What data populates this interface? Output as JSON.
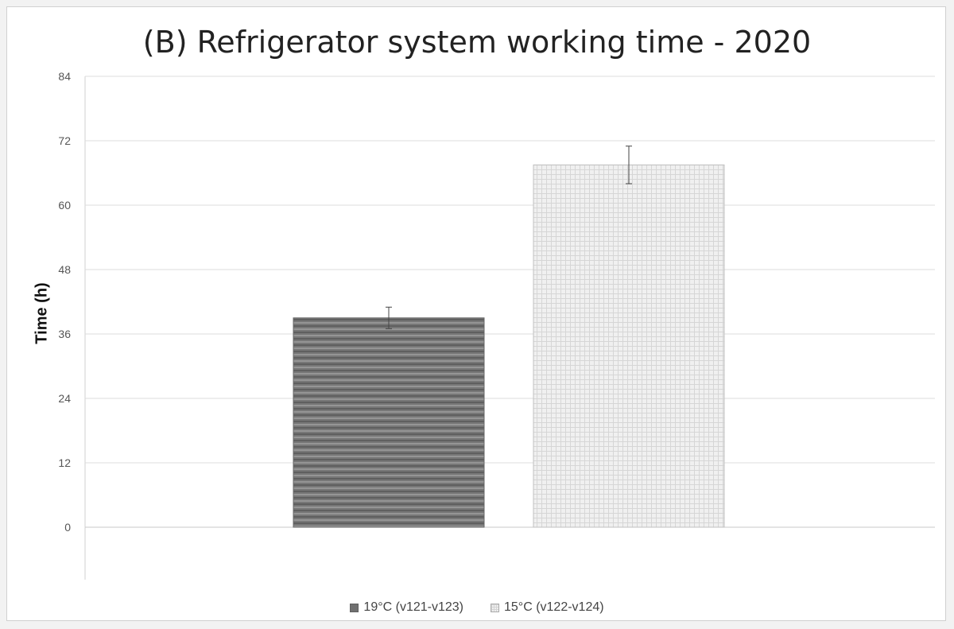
{
  "chart_data": {
    "type": "bar",
    "title": "(B) Refrigerator system working time - 2020",
    "ylabel": "Time (h)",
    "xlabel": "",
    "ylim": [
      0,
      84
    ],
    "yticks": [
      0,
      12,
      24,
      36,
      48,
      60,
      72,
      84
    ],
    "grid": true,
    "legend_position": "bottom",
    "series": [
      {
        "name": "19°C (v121-v123)",
        "value": 39,
        "error": 2,
        "color": "#707070",
        "pattern": "horizontal-stripes"
      },
      {
        "name": "15°C (v122-v124)",
        "value": 67.5,
        "error": 3.5,
        "color": "#eeeeee",
        "pattern": "grid"
      }
    ]
  }
}
